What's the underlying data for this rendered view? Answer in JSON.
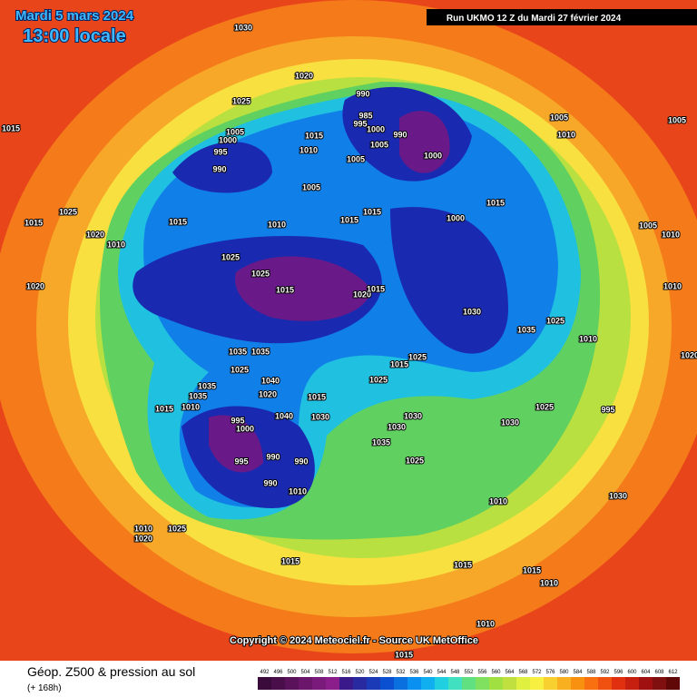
{
  "header": {
    "date": "Mardi 5 mars 2024",
    "time": "13:00 locale",
    "run": "Run UKMO 12 Z du Mardi 27 février 2024"
  },
  "map": {
    "pressure_labels": [
      1030,
      1020,
      1025,
      990,
      985,
      995,
      1000,
      990,
      1005,
      1005,
      1000,
      995,
      990,
      1015,
      1010,
      1005,
      1000,
      1005,
      1015,
      1015,
      1010,
      1015,
      1015,
      1000,
      1005,
      1010,
      1005,
      1015,
      1015,
      1025,
      1020,
      1010,
      1020,
      1025,
      1025,
      1015,
      1020,
      1015,
      1030,
      1025,
      1035,
      1010,
      1005,
      1010,
      1010,
      1020,
      1015,
      1025,
      1025,
      1015,
      1020,
      1030,
      1030,
      1030,
      1035,
      1025,
      1030,
      1025,
      995,
      995,
      1000,
      995,
      990,
      990,
      990,
      1010,
      1040,
      1035,
      1035,
      1025,
      1040,
      1035,
      1035,
      1010,
      1015,
      1010,
      1020,
      1025,
      1015,
      1030,
      1010,
      1015,
      1015,
      1010,
      1010,
      1015
    ]
  },
  "footer": {
    "copyright": "Copyright © 2024 Meteociel.fr - Source UK MetOffice",
    "title": "Géop. Z500 & pression au sol",
    "lead": "(+ 168h)"
  },
  "legend": {
    "values": [
      492,
      496,
      500,
      504,
      508,
      512,
      516,
      520,
      524,
      528,
      532,
      536,
      540,
      544,
      548,
      552,
      556,
      560,
      564,
      568,
      572,
      576,
      580,
      584,
      588,
      592,
      596,
      600,
      604,
      608,
      612
    ],
    "colors": [
      "#3b0b3b",
      "#4a0e4a",
      "#5a125a",
      "#6b166b",
      "#7a1a7a",
      "#8b1e8b",
      "#3a1a8a",
      "#2a2aa0",
      "#1a3ab8",
      "#0a50d0",
      "#0a70e0",
      "#0a90f0",
      "#10b0f0",
      "#20d0e0",
      "#40e0c0",
      "#60e080",
      "#80e060",
      "#a0e040",
      "#c0e040",
      "#e0f040",
      "#f8f040",
      "#f8d030",
      "#f8b020",
      "#f89010",
      "#f87010",
      "#f05010",
      "#e03010",
      "#c82010",
      "#a01010",
      "#801010",
      "#600808"
    ]
  }
}
